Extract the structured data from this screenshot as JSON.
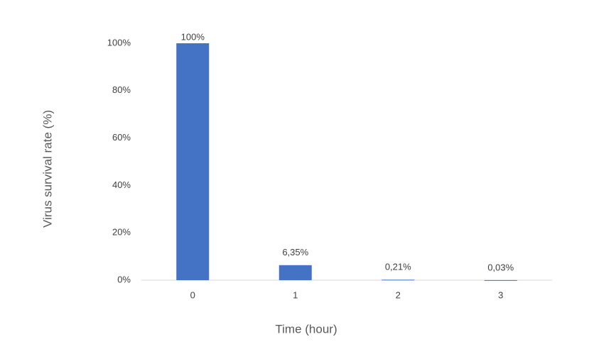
{
  "chart_data": {
    "type": "bar",
    "x_label": "Time (hour)",
    "y_label": "Virus survival rate (%)",
    "categories": [
      "0",
      "1",
      "2",
      "3"
    ],
    "values": [
      100,
      6.35,
      0.21,
      0.03
    ],
    "value_labels": [
      "100%",
      "6,35%",
      "0,21%",
      "0,03%"
    ],
    "color": "#4472c4",
    "ylim": [
      0,
      100
    ],
    "yticks": [
      {
        "value": 0,
        "label": "0%"
      },
      {
        "value": 20,
        "label": "20%"
      },
      {
        "value": 40,
        "label": "40%"
      },
      {
        "value": 60,
        "label": "60%"
      },
      {
        "value": 80,
        "label": "80%"
      },
      {
        "value": 100,
        "label": "100%"
      }
    ],
    "grid": false
  }
}
